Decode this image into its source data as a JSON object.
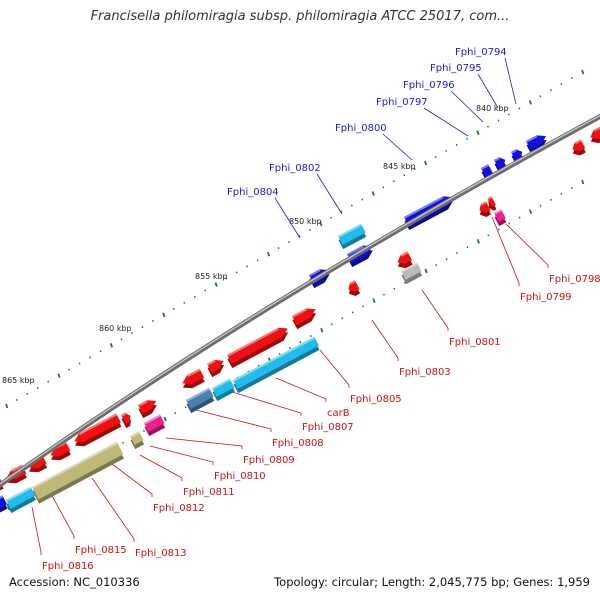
{
  "title": "Francisella philomiragia subsp. philomiragia ATCC 25017, com...",
  "footer": {
    "accession": "Accession: NC_010336",
    "summary": "Topology: circular; Length: 2,045,775 bp; Genes: 1,959"
  },
  "axis_ticks": [
    "840 kbp",
    "845 kbp",
    "850 kbp",
    "855 kbp",
    "860 kbp",
    "865 kbp"
  ],
  "colors": {
    "forward_strand_label": "#1a1adb",
    "reverse_strand_label": "#cc1111",
    "backbone": "#8a8a8a",
    "tick_marks": "#1f7a1f",
    "gene_blue": "#1010e0",
    "gene_cyan": "#22bbee",
    "gene_steelblue": "#4a7fb0",
    "gene_red": "#ee1111",
    "gene_magenta": "#ee1e8c",
    "gene_grey": "#bbbbbb",
    "gene_olive": "#bfb878"
  },
  "genes_top": [
    "Fphi_0794",
    "Fphi_0795",
    "Fphi_0796",
    "Fphi_0797",
    "Fphi_0800",
    "Fphi_0802",
    "Fphi_0804"
  ],
  "genes_bottom": [
    "Fphi_0798",
    "Fphi_0799",
    "Fphi_0801",
    "Fphi_0803",
    "Fphi_0805",
    "carB",
    "Fphi_0807",
    "Fphi_0808",
    "Fphi_0809",
    "Fphi_0810",
    "Fphi_0811",
    "Fphi_0812",
    "Fphi_0813",
    "Fphi_0815",
    "Fphi_0816"
  ]
}
